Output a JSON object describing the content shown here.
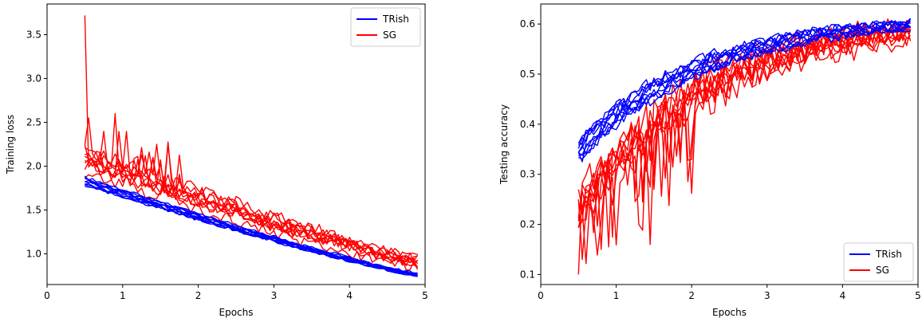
{
  "chart_data": [
    {
      "type": "line",
      "title": "",
      "xlabel": "Epochs",
      "ylabel": "Training loss",
      "xlim": [
        0,
        5
      ],
      "ylim": [
        0.65,
        3.85
      ],
      "xticks": [
        0,
        1,
        2,
        3,
        4,
        5
      ],
      "yticks": [
        1.0,
        1.5,
        2.0,
        2.5,
        3.0,
        3.5
      ],
      "grid": false,
      "legend": {
        "position": "top-right",
        "entries": [
          "TRish",
          "SG"
        ]
      },
      "series": [
        {
          "name": "TRish",
          "color": "#0000ff",
          "runs": 10,
          "x_start": 0.5,
          "x_end": 4.9,
          "start": 1.82,
          "end": 0.76,
          "shape": "decay",
          "noise": 0.02,
          "spread": 0.07
        },
        {
          "name": "SG",
          "color": "#ff0000",
          "runs": 10,
          "x_start": 0.5,
          "x_end": 4.9,
          "start": 2.05,
          "end": 0.9,
          "shape": "decay",
          "noise": 0.09,
          "spread": 0.15,
          "peaks": [
            {
              "x": 0.5,
              "y": 3.72
            },
            {
              "x": 0.55,
              "y": 2.55
            },
            {
              "x": 0.9,
              "y": 2.6
            },
            {
              "x": 1.45,
              "y": 2.25
            }
          ]
        }
      ]
    },
    {
      "type": "line",
      "title": "",
      "xlabel": "Epochs",
      "ylabel": "Testing accuracy",
      "xlim": [
        0,
        5
      ],
      "ylim": [
        0.08,
        0.64
      ],
      "xticks": [
        0,
        1,
        2,
        3,
        4,
        5
      ],
      "yticks": [
        0.1,
        0.2,
        0.3,
        0.4,
        0.5,
        0.6
      ],
      "grid": false,
      "legend": {
        "position": "bottom-right",
        "entries": [
          "TRish",
          "SG"
        ]
      },
      "series": [
        {
          "name": "TRish",
          "color": "#0000ff",
          "runs": 10,
          "x_start": 0.5,
          "x_end": 4.9,
          "start": 0.35,
          "end": 0.6,
          "shape": "rise",
          "noise": 0.012,
          "spread": 0.02
        },
        {
          "name": "SG",
          "color": "#ff0000",
          "runs": 10,
          "x_start": 0.5,
          "x_end": 4.9,
          "start": 0.22,
          "end": 0.58,
          "shape": "rise",
          "noise": 0.03,
          "spread": 0.035,
          "troughs": [
            {
              "x": 0.5,
              "y": 0.1
            },
            {
              "x": 0.55,
              "y": 0.13
            },
            {
              "x": 0.8,
              "y": 0.15
            },
            {
              "x": 1.3,
              "y": 0.2
            },
            {
              "x": 1.45,
              "y": 0.16
            }
          ]
        }
      ]
    }
  ]
}
